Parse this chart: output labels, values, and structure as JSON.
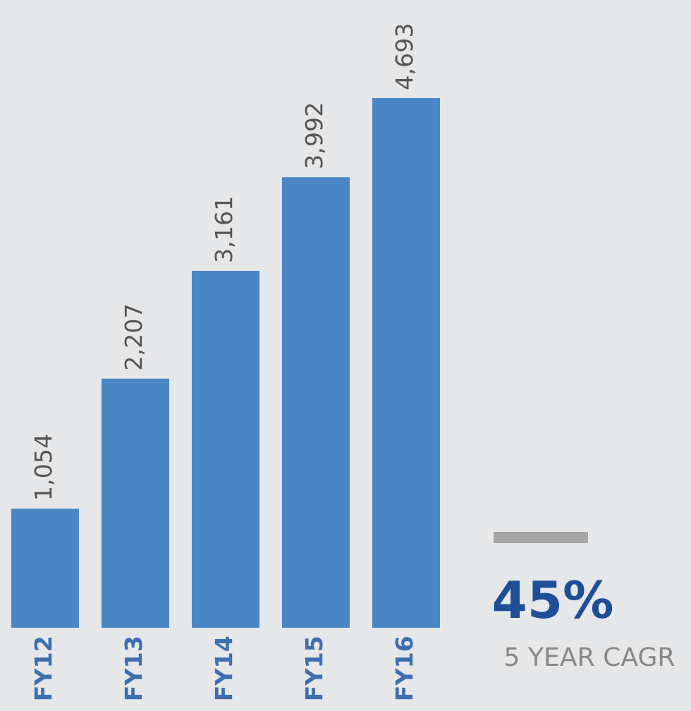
{
  "chart_data": {
    "type": "bar",
    "categories": [
      "FY12",
      "FY13",
      "FY14",
      "FY15",
      "FY16"
    ],
    "values": [
      1054,
      2207,
      3161,
      3992,
      4693
    ],
    "value_labels": [
      "1,054",
      "2,207",
      "3,161",
      "3,992",
      "4,693"
    ],
    "color": "#4a86c5",
    "annotations": [
      "45%",
      "5 YEAR CAGR"
    ]
  }
}
